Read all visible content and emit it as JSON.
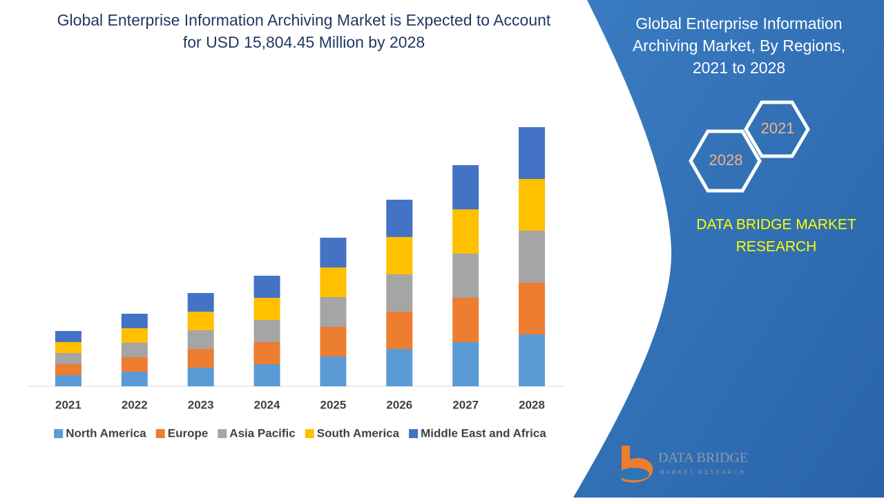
{
  "chart_data": {
    "type": "bar",
    "stacked": true,
    "title": [
      "Global Enterprise Information Archiving Market is Expected to Account",
      "for USD 15,804.45 Million by 2028"
    ],
    "categories": [
      "2021",
      "2022",
      "2023",
      "2024",
      "2025",
      "2026",
      "2027",
      "2028"
    ],
    "series": [
      {
        "name": "North America",
        "color": "#5b9bd5",
        "values": [
          16,
          21,
          27,
          32,
          43,
          54,
          64,
          75
        ]
      },
      {
        "name": "Europe",
        "color": "#ed7d31",
        "values": [
          16,
          21,
          27,
          32,
          43,
          54,
          64,
          75
        ]
      },
      {
        "name": "Asia Pacific",
        "color": "#a5a5a5",
        "values": [
          16,
          21,
          27,
          32,
          43,
          54,
          64,
          75
        ]
      },
      {
        "name": "South America",
        "color": "#ffc000",
        "values": [
          16,
          21,
          27,
          32,
          43,
          54,
          64,
          75
        ]
      },
      {
        "name": "Middle East and Africa",
        "color": "#4472c4",
        "values": [
          16,
          21,
          27,
          32,
          43,
          54,
          64,
          75
        ]
      }
    ],
    "ylim": [
      0,
      400
    ],
    "legend": "bottom"
  },
  "panel": {
    "title": [
      "Global Enterprise Information",
      "Archiving Market, By Regions,",
      "2021 to 2028"
    ],
    "hex_years": [
      "2021",
      "2028"
    ],
    "brand": [
      "DATA BRIDGE MARKET",
      "RESEARCH"
    ]
  },
  "logo": {
    "name": "DATA BRIDGE",
    "tagline": "MARKET RESEARCH"
  }
}
